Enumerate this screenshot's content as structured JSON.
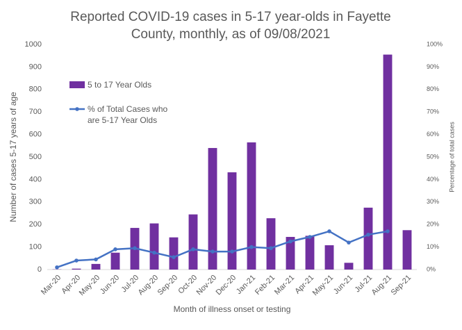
{
  "chart_data": {
    "type": "bar_line",
    "title": "Reported COVID-19 cases in 5-17 year-olds in Fayette County, monthly, as of 09/08/2021",
    "x_label": "Month of illness onset or testing",
    "y_label": "Number of cases 5-17 years of age",
    "y2_label": "Percentage of total cases",
    "categories": [
      "Mar-20",
      "Apr-20",
      "May-20",
      "Jun-20",
      "Jul-20",
      "Aug-20",
      "Sep-20",
      "Oct-20",
      "Nov-20",
      "Dec-20",
      "Jan-21",
      "Feb-21",
      "Mar-21",
      "Apr-21",
      "May-21",
      "Jun-21",
      "Jul-21",
      "Aug-21",
      "Sep-21"
    ],
    "series": [
      {
        "name": "5 to 17 Year Olds",
        "type": "bar",
        "color": "#7030a0",
        "values": [
          1,
          4,
          25,
          75,
          185,
          205,
          143,
          245,
          540,
          432,
          565,
          228,
          145,
          150,
          108,
          30,
          275,
          955,
          175
        ]
      },
      {
        "name": "% of Total Cases who are 5-17 Year Olds",
        "type": "line",
        "axis": "y2",
        "color": "#4472c4",
        "values": [
          1,
          4,
          4.5,
          9,
          9.5,
          7.5,
          5.5,
          9,
          8,
          8,
          10,
          9.5,
          12.5,
          14.5,
          17,
          12,
          15.5,
          17,
          null
        ]
      }
    ],
    "ylim": [
      0,
      1000
    ],
    "yticks": [
      0,
      100,
      200,
      300,
      400,
      500,
      600,
      700,
      800,
      900,
      1000
    ],
    "y2lim": [
      0,
      100
    ],
    "y2ticks": [
      {
        "value": 0,
        "label": "0%"
      },
      {
        "value": 10,
        "label": "10%"
      },
      {
        "value": 20,
        "label": "20%"
      },
      {
        "value": 30,
        "label": "30%"
      },
      {
        "value": 40,
        "label": "40%"
      },
      {
        "value": 50,
        "label": "50%"
      },
      {
        "value": 60,
        "label": "60%"
      },
      {
        "value": 70,
        "label": "70%"
      },
      {
        "value": 80,
        "label": "80%"
      },
      {
        "value": 90,
        "label": "90%"
      },
      {
        "value": 100,
        "label": "100%"
      }
    ],
    "grid": false
  }
}
